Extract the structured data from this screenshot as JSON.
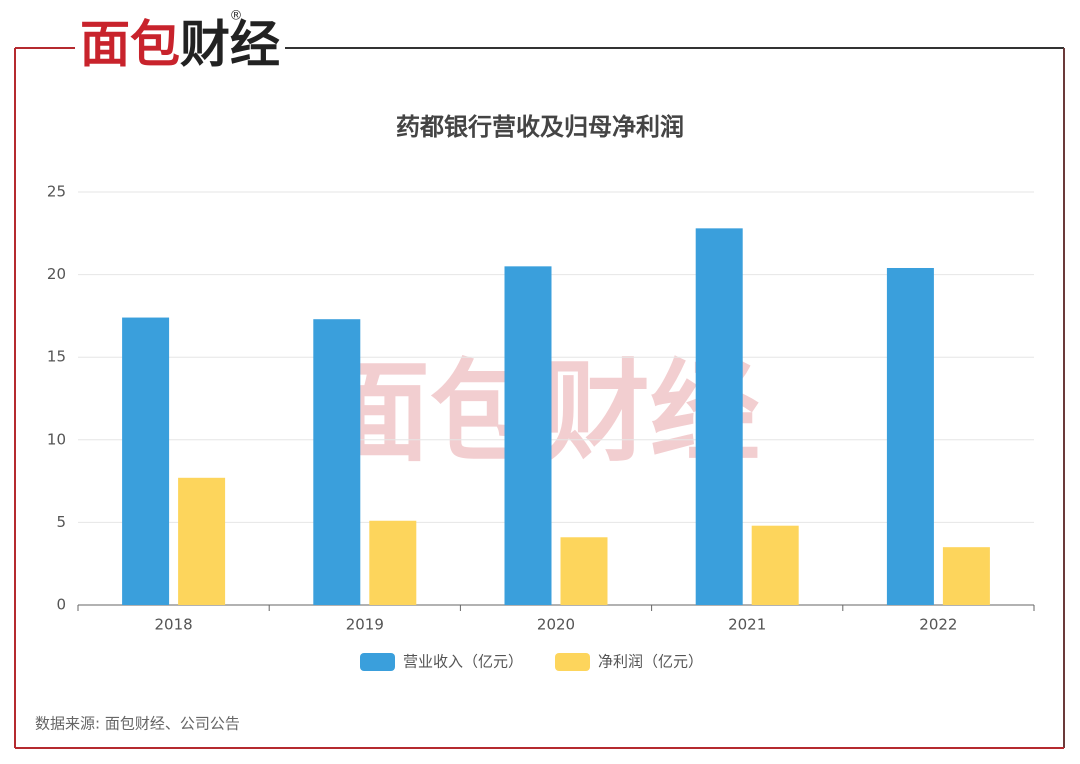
{
  "chart_data": {
    "type": "bar",
    "logo": "面包财经",
    "logo_mark": "®",
    "title": "药都银行营收及归母净利润",
    "categories": [
      "2018",
      "2019",
      "2020",
      "2021",
      "2022"
    ],
    "series": [
      {
        "name": "营业收入（亿元）",
        "color": "#3a9fdc",
        "values": [
          17.4,
          17.3,
          20.5,
          22.8,
          20.4
        ]
      },
      {
        "name": "净利润（亿元）",
        "color": "#fdd55c",
        "values": [
          7.7,
          5.1,
          4.1,
          4.8,
          3.5
        ]
      }
    ],
    "ylim": [
      0,
      25
    ],
    "yticks": [
      0,
      5,
      10,
      15,
      20,
      25
    ],
    "grid": true,
    "legend": "bottom",
    "source": "数据来源: 面包财经、公司公告"
  }
}
